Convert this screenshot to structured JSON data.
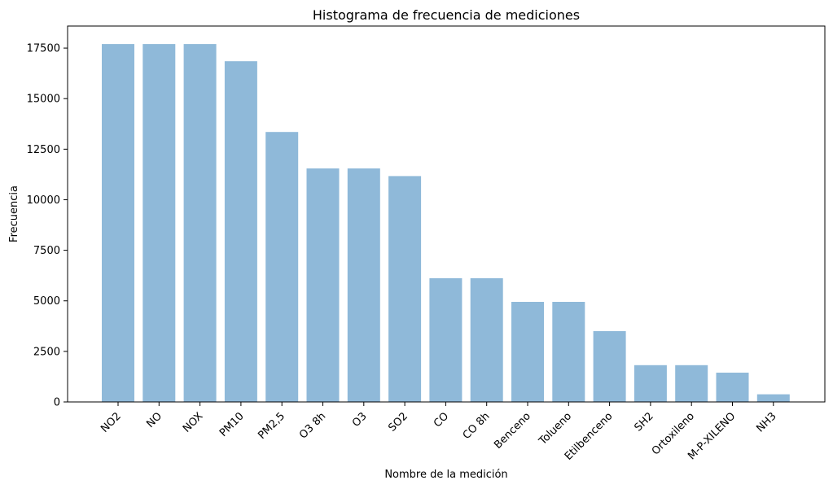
{
  "chart_data": {
    "type": "bar",
    "title": "Histograma de frecuencia de mediciones",
    "xlabel": "Nombre de la medición",
    "ylabel": "Frecuencia",
    "categories": [
      "NO2",
      "NO",
      "NOX",
      "PM10",
      "PM2,5",
      "O3 8h",
      "O3",
      "SO2",
      "CO",
      "CO 8h",
      "Benceno",
      "Tolueno",
      "Etilbenceno",
      "SH2",
      "Ortoxileno",
      "M-P-XILENO",
      "NH3"
    ],
    "values": [
      17700,
      17700,
      17700,
      16850,
      13350,
      11550,
      11550,
      11170,
      6120,
      6120,
      4950,
      4950,
      3500,
      1820,
      1820,
      1450,
      380
    ],
    "ylim": [
      0,
      18590
    ],
    "yticks": [
      0,
      2500,
      5000,
      7500,
      10000,
      12500,
      15000,
      17500
    ],
    "bar_color": "#8fb9d9",
    "grid": false
  }
}
